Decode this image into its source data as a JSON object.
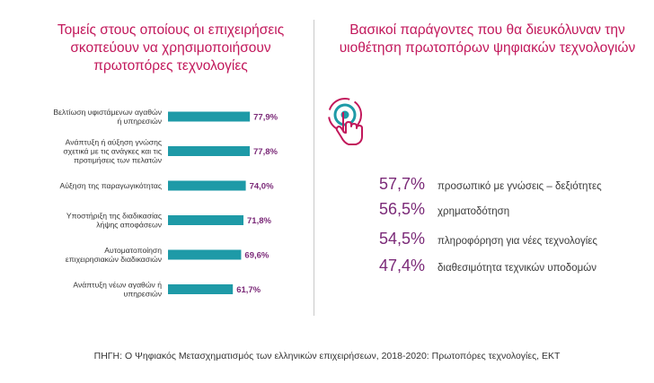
{
  "left_title": "Τομείς στους οποίους οι επιχειρήσεις σκοπεύουν να χρησιμοποιήσουν πρωτοπόρες τεχνολογίες",
  "right_title": "Βασικοί παράγοντες που θα διευκόλυναν την υιοθέτηση πρωτοπόρων ψηφιακών τεχνολογιών",
  "chart_data": {
    "type": "bar",
    "orientation": "horizontal",
    "categories": [
      [
        "Βελτίωση υφιστάμενων αγαθών",
        "ή υπηρεσιών"
      ],
      [
        "Ανάπτυξη ή αύξηση γνώσης",
        "σχετικά με τις ανάγκες και τις",
        "προτιμήσεις των πελατών"
      ],
      [
        "Αύξηση της παραγωγικότητας"
      ],
      [
        "Υποστήριξη της διαδικασίας",
        "λήψης αποφάσεων"
      ],
      [
        "Αυτοματοποίηση",
        "επιχειρησιακών διαδικασιών"
      ],
      [
        "Ανάπτυξη νέων αγαθών ή",
        "υπηρεσιών"
      ]
    ],
    "values": [
      77.9,
      77.8,
      74.0,
      71.8,
      69.6,
      61.7
    ],
    "value_labels": [
      "77,9%",
      "77,8%",
      "74,0%",
      "71,8%",
      "69,6%",
      "61,7%"
    ],
    "bar_color": "#1e9aa7",
    "xlim": [
      0,
      100
    ],
    "grid": false
  },
  "factors": [
    {
      "pct": "57,7%",
      "label": "προσωπικό με γνώσεις – δεξιότητες"
    },
    {
      "pct": "56,5%",
      "label": "χρηματοδότηση"
    },
    {
      "pct": "54,5%",
      "label": "πληροφόρηση για νέες τεχνολογίες"
    },
    {
      "pct": "47,4%",
      "label": "διαθεσιμότητα τεχνικών υποδομών"
    }
  ],
  "icon": "touch-target-icon",
  "colors": {
    "title": "#c2185b",
    "bars": "#1e9aa7",
    "percent": "#7b2a78"
  },
  "source": "ΠΗΓΗ: Ο Ψηφιακός Μετασχηματισμός των ελληνικών επιχειρήσεων, 2018-2020: Πρωτοπόρες τεχνολογίες, ΕΚΤ"
}
